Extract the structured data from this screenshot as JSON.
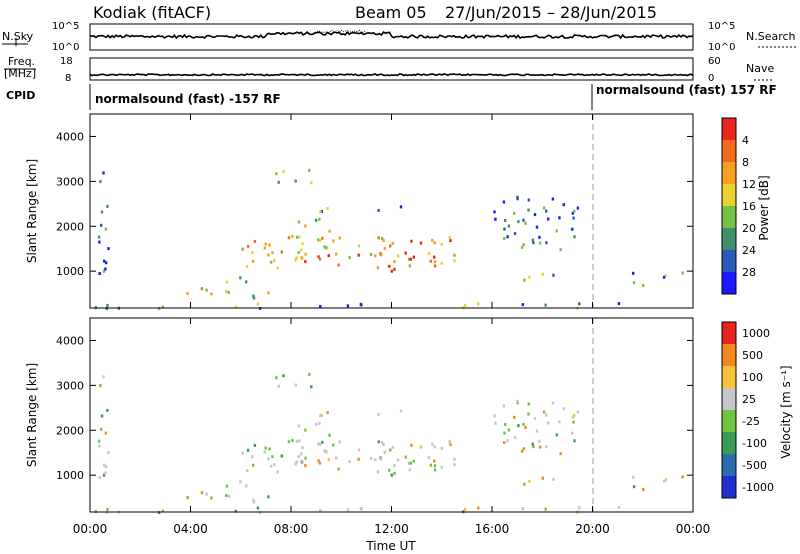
{
  "header": {
    "station": "Kodiak (fitACF)",
    "beam": "Beam 05",
    "date_range": "27/Jun/2015 – 28/Jun/2015"
  },
  "noise_panel": {
    "left_label": "N.Sky",
    "right_label": "N.Search",
    "tick_top": "10^5",
    "tick_bottom": "10^0"
  },
  "freq_panel": {
    "left_label_line1": "Freq.",
    "left_label_line2": "[MHz]",
    "left_tick_top": "18",
    "left_tick_bottom": "8",
    "right_label": "Nave",
    "right_tick_top": "60",
    "right_tick_bottom": "0"
  },
  "cpid_panel": {
    "label": "CPID",
    "segments": [
      {
        "text": "normalsound (fast) -157 RF",
        "start_hour": 0
      },
      {
        "text": "normalsound (fast) 157 RF",
        "start_hour": 20
      }
    ]
  },
  "chart_data": [
    {
      "type": "heatmap",
      "name": "power",
      "ylabel": "Slant Range [km]",
      "ylim": [
        180,
        4500
      ],
      "yticks": [
        "1000",
        "2000",
        "3000",
        "4000"
      ],
      "colorbar_label": "Power [dB]",
      "colorbar_ticks": [
        "4",
        "8",
        "12",
        "16",
        "20",
        "24",
        "28"
      ],
      "colors": [
        "#1a1aff",
        "#2b58b8",
        "#3f8f6a",
        "#76c043",
        "#e7d22e",
        "#f5a022",
        "#f36a1e",
        "#e8261d"
      ]
    },
    {
      "type": "heatmap",
      "name": "velocity",
      "ylabel": "Slant Range [km]",
      "ylim": [
        180,
        4500
      ],
      "yticks": [
        "1000",
        "2000",
        "3000",
        "4000"
      ],
      "colorbar_label": "Velocity [m s⁻¹]",
      "colorbar_ticks": [
        "1000",
        "500",
        "100",
        "25",
        "-25",
        "-100",
        "-500",
        "-1000"
      ],
      "colors": [
        "#1f2fd0",
        "#2d6cb3",
        "#3b9a57",
        "#72c33f",
        "#c6c6c6",
        "#f5c33a",
        "#f08a20",
        "#e8251c"
      ],
      "xlabel": "Time UT",
      "xticks": [
        "00:00",
        "04:00",
        "08:00",
        "12:00",
        "16:00",
        "20:00",
        "00:00"
      ],
      "xlim_hours": [
        0,
        24
      ]
    }
  ]
}
